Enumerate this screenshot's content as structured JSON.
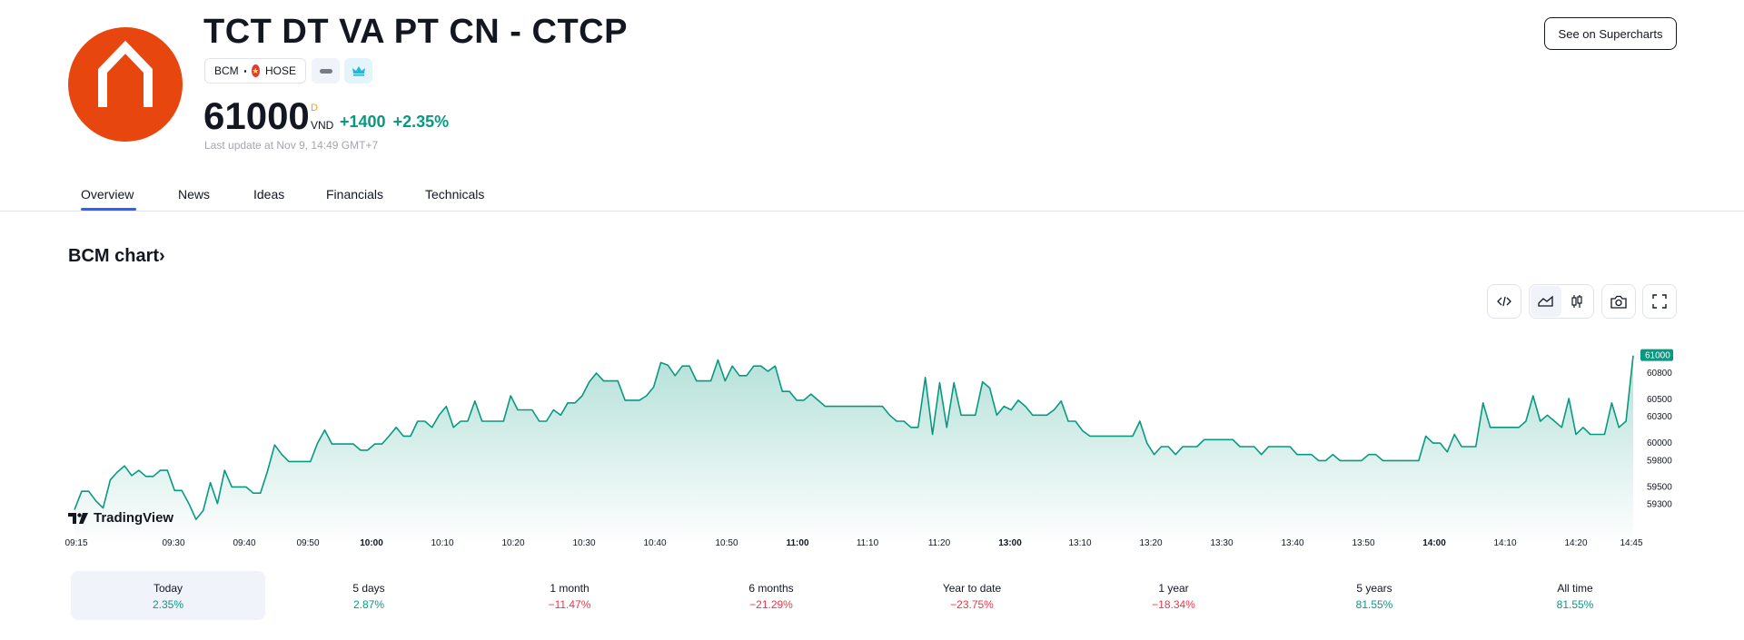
{
  "header": {
    "company_name": "TCT DT VA PT CN - CTCP",
    "ticker": "BCM",
    "exchange": "HOSE",
    "price": "61000",
    "price_marker": "D",
    "currency": "VND",
    "change_abs": "+1400",
    "change_pct": "+2.35%",
    "last_update": "Last update at Nov 9, 14:49 GMT+7",
    "see_button": "See on Supercharts",
    "logo_icon": "house-logo-icon",
    "accent": "#e8460f"
  },
  "tabs": [
    {
      "label": "Overview",
      "active": true
    },
    {
      "label": "News"
    },
    {
      "label": "Ideas"
    },
    {
      "label": "Financials"
    },
    {
      "label": "Technicals"
    }
  ],
  "chart_section": {
    "title": "BCM chart",
    "title_suffix": "›",
    "watermark": "TradingView",
    "toolbar": [
      "embed-code-icon",
      "area-chart-icon",
      "candles-icon",
      "camera-icon",
      "fullscreen-icon"
    ]
  },
  "chart_data": {
    "type": "area",
    "line_color": "#089981",
    "x_ticks": [
      "09:15",
      "09:30",
      "09:40",
      "09:50",
      "10:00",
      "10:10",
      "10:20",
      "10:30",
      "10:40",
      "10:50",
      "11:00",
      "11:10",
      "11:20",
      "13:00",
      "13:10",
      "13:20",
      "13:30",
      "13:40",
      "13:50",
      "14:00",
      "14:10",
      "14:20",
      "14:45"
    ],
    "x_ticks_bold": [
      "10:00",
      "11:00",
      "13:00",
      "14:00"
    ],
    "y_ticks": [
      60800,
      60500,
      60300,
      60000,
      59800,
      59500,
      59300
    ],
    "last_value": 61000,
    "ylim": [
      59100,
      61100
    ],
    "values": [
      59240,
      59450,
      59450,
      59340,
      59260,
      59580,
      59670,
      59740,
      59630,
      59690,
      59620,
      59620,
      59690,
      59690,
      59460,
      59460,
      59310,
      59130,
      59230,
      59550,
      59310,
      59690,
      59500,
      59500,
      59500,
      59430,
      59430,
      59680,
      59980,
      59870,
      59790,
      59790,
      59790,
      59790,
      60000,
      60150,
      59990,
      59990,
      59990,
      59990,
      59920,
      59920,
      59990,
      59990,
      60080,
      60180,
      60080,
      60080,
      60250,
      60250,
      60180,
      60320,
      60420,
      60180,
      60250,
      60250,
      60480,
      60250,
      60250,
      60250,
      60250,
      60540,
      60380,
      60380,
      60380,
      60250,
      60250,
      60380,
      60320,
      60460,
      60460,
      60540,
      60700,
      60800,
      60710,
      60710,
      60710,
      60490,
      60490,
      60490,
      60540,
      60640,
      60920,
      60890,
      60770,
      60880,
      60880,
      60710,
      60710,
      60710,
      60950,
      60710,
      60880,
      60770,
      60770,
      60880,
      60880,
      60820,
      60880,
      60590,
      60590,
      60490,
      60490,
      60560,
      60490,
      60420,
      60420,
      60420,
      60420,
      60420,
      60420,
      60420,
      60420,
      60420,
      60320,
      60250,
      60250,
      60180,
      60180,
      60750,
      60100,
      60690,
      60180,
      60690,
      60320,
      60320,
      60320,
      60700,
      60630,
      60320,
      60420,
      60380,
      60490,
      60420,
      60320,
      60320,
      60320,
      60380,
      60480,
      60250,
      60250,
      60140,
      60080,
      60080,
      60080,
      60080,
      60080,
      60080,
      60080,
      60250,
      60000,
      59870,
      59960,
      59960,
      59870,
      59960,
      59960,
      59960,
      60040,
      60040,
      60040,
      60040,
      60040,
      59960,
      59960,
      59960,
      59870,
      59960,
      59960,
      59960,
      59960,
      59870,
      59870,
      59870,
      59800,
      59800,
      59870,
      59800,
      59800,
      59800,
      59800,
      59870,
      59870,
      59800,
      59800,
      59800,
      59800,
      59800,
      59800,
      60080,
      60000,
      60000,
      59900,
      60100,
      59960,
      59960,
      59960,
      60460,
      60180,
      60180,
      60180,
      60180,
      60180,
      60250,
      60540,
      60250,
      60320,
      60250,
      60180,
      60510,
      60100,
      60180,
      60100,
      60100,
      60100,
      60460,
      60180,
      60250,
      61000
    ]
  },
  "periods": [
    {
      "label": "Today",
      "change": "2.35%",
      "positive": true,
      "active": true
    },
    {
      "label": "5 days",
      "change": "2.87%",
      "positive": true
    },
    {
      "label": "1 month",
      "change": "−11.47%",
      "positive": false
    },
    {
      "label": "6 months",
      "change": "−21.29%",
      "positive": false
    },
    {
      "label": "Year to date",
      "change": "−23.75%",
      "positive": false
    },
    {
      "label": "1 year",
      "change": "−18.34%",
      "positive": false
    },
    {
      "label": "5 years",
      "change": "81.55%",
      "positive": true
    },
    {
      "label": "All time",
      "change": "81.55%",
      "positive": true
    }
  ]
}
